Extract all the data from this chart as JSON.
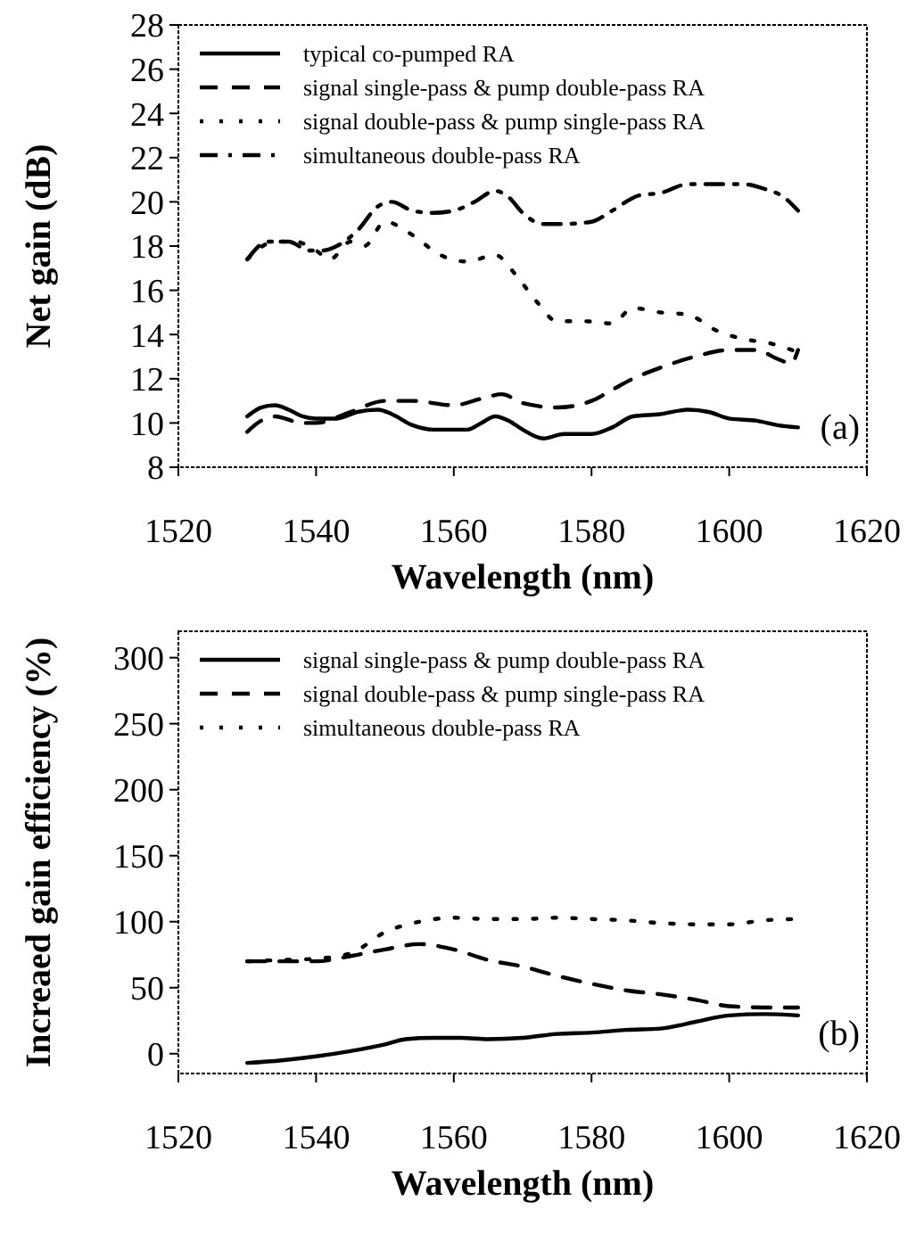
{
  "chart_data": [
    {
      "type": "line",
      "xlabel": "Wavelength (nm)",
      "ylabel": "Net gain (dB)",
      "xlim": [
        1520,
        1620
      ],
      "xticks": [
        1520,
        1540,
        1560,
        1580,
        1600,
        1620
      ],
      "ylim": [
        8,
        28
      ],
      "yticks": [
        8,
        10,
        12,
        14,
        16,
        18,
        20,
        22,
        24,
        26,
        28
      ],
      "grid": false,
      "legend": "top left",
      "annotations": [
        "(a)"
      ],
      "series": [
        {
          "name": "typical co-pumped RA",
          "color": "#000000",
          "line_style": "solid",
          "x": [
            1530,
            1532,
            1534,
            1536,
            1538,
            1540,
            1543,
            1546,
            1549,
            1551,
            1554,
            1557,
            1560,
            1562,
            1564,
            1566,
            1568,
            1570,
            1573,
            1576,
            1580,
            1583,
            1586,
            1590,
            1594,
            1597,
            1600,
            1604,
            1607,
            1610
          ],
          "values": [
            10.3,
            10.7,
            10.8,
            10.6,
            10.3,
            10.2,
            10.2,
            10.5,
            10.6,
            10.4,
            9.9,
            9.7,
            9.7,
            9.7,
            10.0,
            10.3,
            10.1,
            9.7,
            9.3,
            9.5,
            9.5,
            9.8,
            10.3,
            10.4,
            10.6,
            10.5,
            10.2,
            10.1,
            9.9,
            9.8
          ]
        },
        {
          "name": "signal single-pass & pump double-pass RA",
          "color": "#000000",
          "line_style": "dashed",
          "x": [
            1530,
            1532,
            1534,
            1538,
            1540,
            1545,
            1550,
            1554,
            1560,
            1564,
            1567,
            1570,
            1575,
            1580,
            1583,
            1586,
            1590,
            1595,
            1600,
            1604,
            1607,
            1609,
            1610
          ],
          "values": [
            9.6,
            10.1,
            10.3,
            10.0,
            10.0,
            10.5,
            11.0,
            11.0,
            10.8,
            11.1,
            11.3,
            10.9,
            10.7,
            11.0,
            11.5,
            12.0,
            12.5,
            13.0,
            13.3,
            13.3,
            12.9,
            12.7,
            13.3
          ]
        },
        {
          "name": "signal double-pass & pump single-pass RA",
          "color": "#000000",
          "line_style": "dotted",
          "x": [
            1530,
            1534,
            1537,
            1540,
            1542,
            1545,
            1547,
            1550,
            1554,
            1558,
            1562,
            1566,
            1569,
            1572,
            1575,
            1579,
            1583,
            1586,
            1590,
            1594,
            1598,
            1602,
            1606,
            1610
          ],
          "values": [
            17.4,
            18.2,
            18.2,
            17.8,
            17.4,
            18.2,
            18.0,
            19.1,
            18.5,
            17.6,
            17.3,
            17.6,
            16.7,
            15.5,
            14.6,
            14.6,
            14.5,
            15.2,
            15.0,
            14.9,
            14.2,
            13.8,
            13.6,
            13.2
          ]
        },
        {
          "name": "simultaneous double-pass RA",
          "color": "#000000",
          "line_style": "dashdot",
          "x": [
            1530,
            1533,
            1536,
            1539,
            1541,
            1543,
            1546,
            1549,
            1551,
            1554,
            1557,
            1560,
            1563,
            1566,
            1568,
            1570,
            1573,
            1576,
            1580,
            1583,
            1587,
            1590,
            1594,
            1598,
            1602,
            1605,
            1608,
            1610
          ],
          "values": [
            17.4,
            18.2,
            18.2,
            17.8,
            17.8,
            18.0,
            18.7,
            19.8,
            20.0,
            19.6,
            19.5,
            19.6,
            20.0,
            20.5,
            20.2,
            19.5,
            19.0,
            19.0,
            19.1,
            19.6,
            20.3,
            20.4,
            20.8,
            20.8,
            20.8,
            20.6,
            20.2,
            19.6
          ]
        }
      ]
    },
    {
      "type": "line",
      "xlabel": "Wavelength (nm)",
      "ylabel": "Increaed gain efficiency (%)",
      "xlim": [
        1520,
        1620
      ],
      "xticks": [
        1520,
        1540,
        1560,
        1580,
        1600,
        1620
      ],
      "ylim": [
        -15,
        320
      ],
      "yticks": [
        0,
        50,
        100,
        150,
        200,
        250,
        300
      ],
      "grid": false,
      "legend": "top left",
      "annotations": [
        "(b)"
      ],
      "series": [
        {
          "name": "signal single-pass & pump double-pass RA",
          "color": "#000000",
          "line_style": "solid",
          "x": [
            1530,
            1535,
            1540,
            1545,
            1550,
            1553,
            1557,
            1561,
            1565,
            1570,
            1575,
            1580,
            1585,
            1590,
            1595,
            1600,
            1605,
            1610
          ],
          "values": [
            -7,
            -5,
            -2,
            2,
            7,
            11,
            12,
            12,
            11,
            12,
            15,
            16,
            18,
            19,
            24,
            29,
            30,
            29
          ]
        },
        {
          "name": "signal double-pass & pump single-pass RA",
          "color": "#000000",
          "line_style": "dashed",
          "x": [
            1530,
            1535,
            1540,
            1545,
            1550,
            1555,
            1560,
            1565,
            1570,
            1575,
            1580,
            1585,
            1590,
            1595,
            1600,
            1605,
            1610
          ],
          "values": [
            70,
            70,
            70,
            74,
            79,
            83,
            79,
            71,
            66,
            59,
            53,
            48,
            45,
            41,
            36,
            35,
            35
          ]
        },
        {
          "name": "simultaneous double-pass RA",
          "color": "#000000",
          "line_style": "dotted",
          "x": [
            1530,
            1535,
            1540,
            1545,
            1550,
            1555,
            1560,
            1565,
            1570,
            1575,
            1580,
            1585,
            1590,
            1595,
            1600,
            1605,
            1610
          ],
          "values": [
            70,
            71,
            72,
            76,
            92,
            100,
            103,
            102,
            102,
            103,
            102,
            101,
            99,
            98,
            98,
            101,
            102
          ]
        }
      ]
    }
  ]
}
